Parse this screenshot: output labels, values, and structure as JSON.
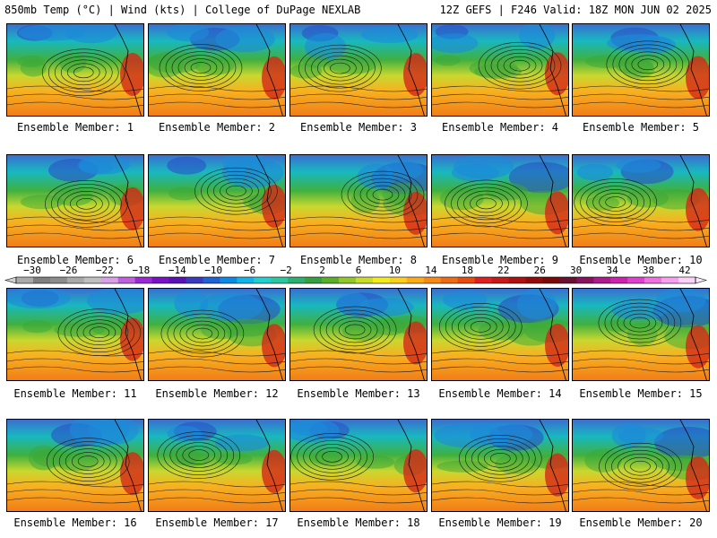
{
  "header": {
    "left": "850mb Temp (°C) | Wind (kts) | College of DuPage NEXLAB",
    "right": "12Z GEFS | F246 Valid: 18Z MON JUN 02 2025"
  },
  "members": [
    "Ensemble Member: 1",
    "Ensemble Member: 2",
    "Ensemble Member: 3",
    "Ensemble Member: 4",
    "Ensemble Member: 5",
    "Ensemble Member: 6",
    "Ensemble Member: 7",
    "Ensemble Member: 8",
    "Ensemble Member: 9",
    "Ensemble Member: 10",
    "Ensemble Member: 11",
    "Ensemble Member: 12",
    "Ensemble Member: 13",
    "Ensemble Member: 14",
    "Ensemble Member: 15",
    "Ensemble Member: 16",
    "Ensemble Member: 17",
    "Ensemble Member: 18",
    "Ensemble Member: 19",
    "Ensemble Member: 20"
  ],
  "colorbar": {
    "ticks": [
      "−30",
      "−26",
      "−22",
      "−18",
      "−14",
      "−10",
      "−6",
      "−2",
      "2",
      "6",
      "10",
      "14",
      "18",
      "22",
      "26",
      "30",
      "34",
      "38",
      "42"
    ],
    "colors": [
      "#aaaaaa",
      "#7f7f7f",
      "#8c8c8c",
      "#a9a9a9",
      "#bfbfbf",
      "#d8a0e8",
      "#c060e0",
      "#9a28d8",
      "#7a10c8",
      "#5a10b8",
      "#3a3ac0",
      "#1e62d8",
      "#0a8ae8",
      "#10b4e8",
      "#20d0d0",
      "#28c8a0",
      "#2cb070",
      "#36a040",
      "#58b028",
      "#90c828",
      "#c8dc28",
      "#f2ec1e",
      "#fcd01a",
      "#fcaa16",
      "#f88a14",
      "#f06a12",
      "#e84a10",
      "#e02020",
      "#c81818",
      "#b01010",
      "#960a0a",
      "#7c0808",
      "#6a1030",
      "#8a1060",
      "#b01890",
      "#d020b0",
      "#e040d0",
      "#f070e0",
      "#f8a0f0",
      "#fcd0f8"
    ]
  }
}
